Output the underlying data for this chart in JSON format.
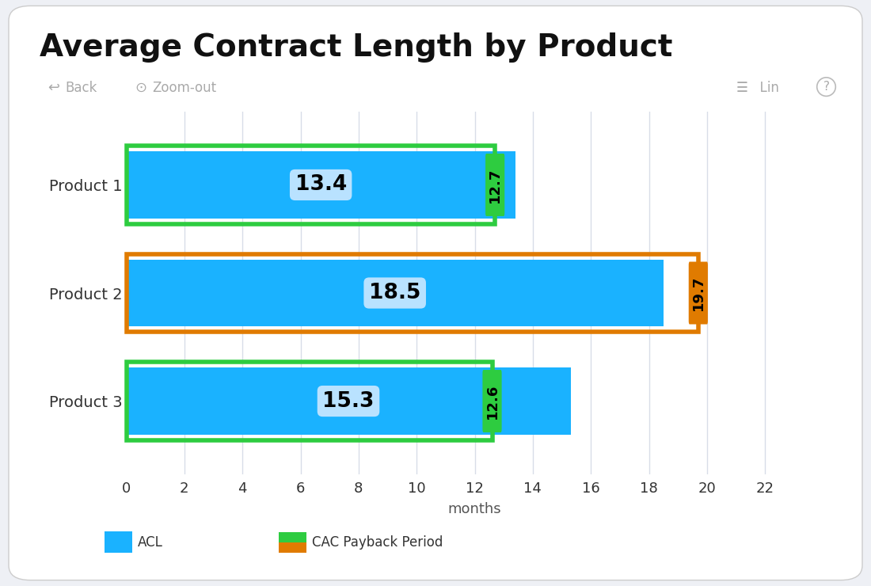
{
  "title": "Average Contract Length by Product",
  "products": [
    "Product 1",
    "Product 2",
    "Product 3"
  ],
  "acl_values": [
    13.4,
    18.5,
    15.3
  ],
  "cac_values": [
    12.7,
    19.7,
    12.6
  ],
  "cac_colors": [
    "#2ecc40",
    "#e07b00",
    "#2ecc40"
  ],
  "bar_color": "#1ab2ff",
  "bar_height": 0.62,
  "xlim": [
    0,
    24
  ],
  "xticks": [
    0,
    2,
    4,
    6,
    8,
    10,
    12,
    14,
    16,
    18,
    20,
    22
  ],
  "xlabel": "months",
  "background_color": "#eef0f5",
  "card_color": "#ffffff",
  "grid_color": "#d8dde8",
  "title_fontsize": 28,
  "axis_label_fontsize": 13,
  "tick_fontsize": 13,
  "value_fontsize": 19,
  "cac_label_fontsize": 13,
  "legend_acl_label": "ACL",
  "legend_cac_label": "CAC Payback Period",
  "subtitle_back": "Back",
  "subtitle_zoom": "Zoom-out",
  "subtitle_lin": "Lin"
}
